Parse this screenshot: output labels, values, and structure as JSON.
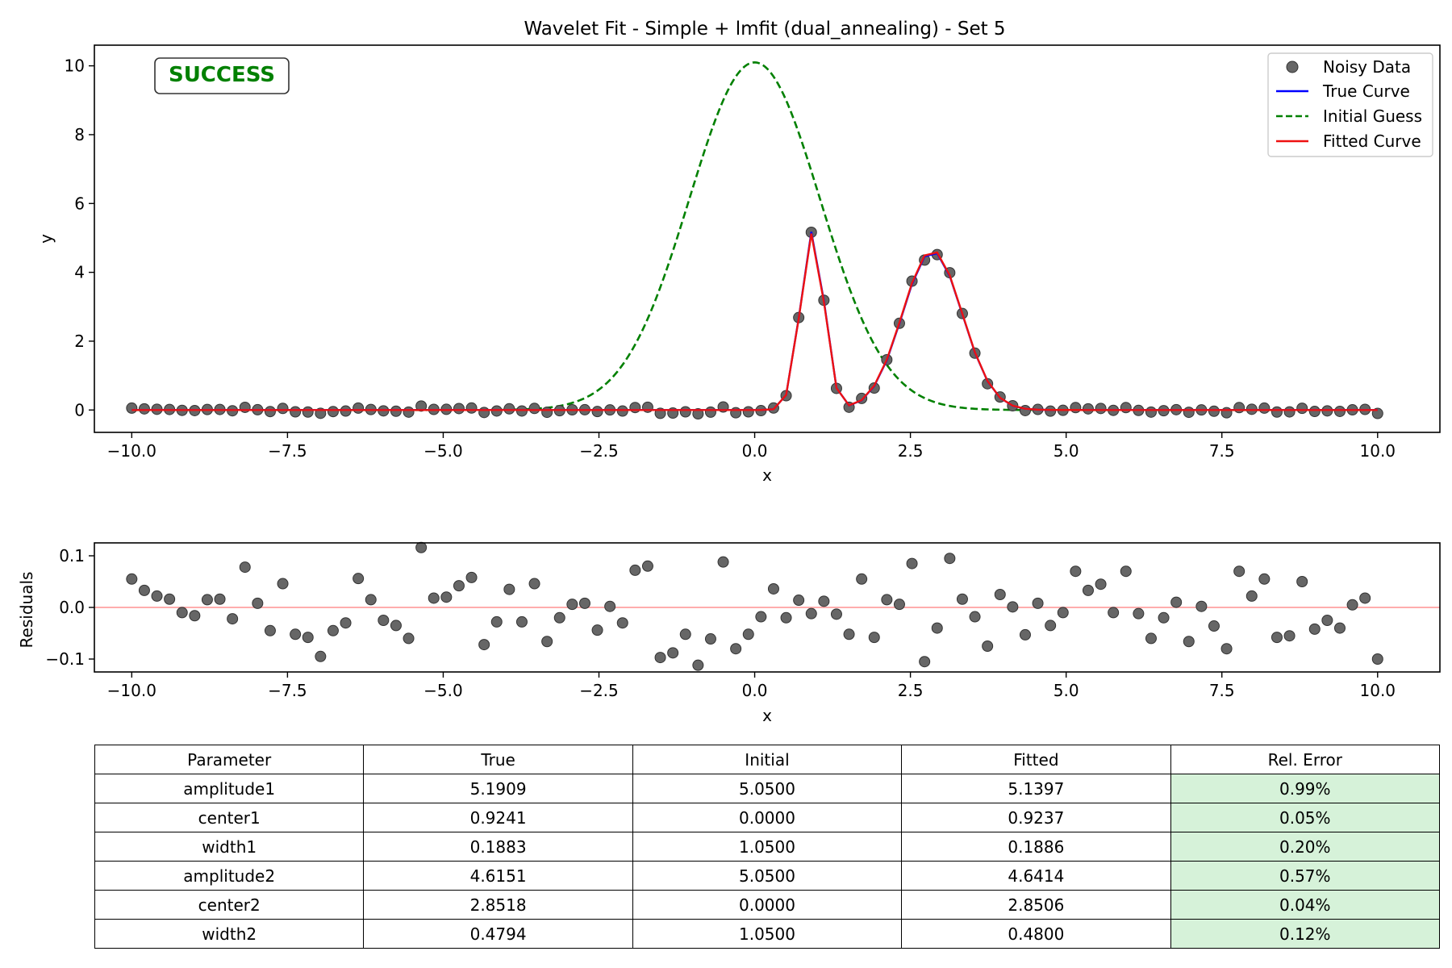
{
  "colors": {
    "noisy": "#666666",
    "true_curve": "#0000ff",
    "initial": "#008000",
    "fitted": "#ee1111",
    "zero_line": "#ff9999",
    "success": "#008000",
    "cell_ok": "#d6f2d9"
  },
  "chart_data": [
    {
      "type": "line",
      "title": "Wavelet Fit - Simple + lmfit (dual_annealing) - Set 5",
      "xlabel": "x",
      "ylabel": "y",
      "xlim": [
        -10.6,
        11.0
      ],
      "ylim": [
        -0.65,
        10.6
      ],
      "xticks": [
        -10,
        -7.5,
        -5,
        -2.5,
        0,
        2.5,
        5,
        7.5,
        10
      ],
      "xtick_labels": [
        "−10.0",
        "−7.5",
        "−5.0",
        "−2.5",
        "0.0",
        "2.5",
        "5.0",
        "7.5",
        "10.0"
      ],
      "yticks": [
        0,
        2,
        4,
        6,
        8,
        10
      ],
      "ytick_labels": [
        "0",
        "2",
        "4",
        "6",
        "8",
        "10"
      ],
      "grid": false,
      "legend_position": "top-right",
      "badge": "SUCCESS",
      "x_samples": {
        "start": -10,
        "stop": 10,
        "count": 100
      },
      "noise": [
        0.055,
        0.033,
        0.022,
        0.016,
        -0.01,
        -0.016,
        0.015,
        0.016,
        -0.022,
        0.078,
        0.008,
        -0.045,
        0.046,
        -0.052,
        -0.058,
        -0.095,
        -0.045,
        -0.03,
        0.056,
        0.015,
        -0.025,
        -0.035,
        -0.06,
        0.116,
        0.018,
        0.02,
        0.042,
        0.058,
        -0.072,
        -0.028,
        0.035,
        -0.028,
        0.046,
        -0.066,
        -0.02,
        0.006,
        0.008,
        -0.044,
        0.002,
        -0.03,
        0.072,
        0.08,
        -0.097,
        -0.088,
        -0.052,
        -0.112,
        -0.061,
        0.088,
        -0.08,
        -0.052,
        -0.018,
        0.036,
        -0.02,
        0.014,
        -0.012,
        0.012,
        -0.013,
        -0.052,
        0.055,
        -0.058,
        0.015,
        0.006,
        0.085,
        -0.105,
        -0.04,
        0.095,
        0.016,
        -0.018,
        -0.075,
        0.025,
        0.001,
        -0.053,
        0.008,
        -0.035,
        -0.01,
        0.07,
        0.033,
        0.045,
        -0.01,
        0.07,
        -0.012,
        -0.06,
        -0.02,
        0.01,
        -0.066,
        0.002,
        -0.036,
        -0.08,
        0.07,
        0.022,
        0.055,
        -0.058,
        -0.055,
        0.05,
        -0.042,
        -0.025,
        -0.04,
        0.005,
        0.018,
        -0.1
      ],
      "series": [
        {
          "name": "Noisy Data",
          "kind": "markers"
        },
        {
          "name": "True Curve",
          "kind": "line",
          "params": {
            "amplitude1": 5.1909,
            "center1": 0.9241,
            "width1": 0.1883,
            "amplitude2": 4.6151,
            "center2": 2.8518,
            "width2": 0.4794
          }
        },
        {
          "name": "Initial Guess",
          "kind": "dashed",
          "params": {
            "amplitude1": 5.05,
            "center1": 0.0,
            "width1": 1.05,
            "amplitude2": 5.05,
            "center2": 0.0,
            "width2": 1.05
          }
        },
        {
          "name": "Fitted Curve",
          "kind": "line",
          "params": {
            "amplitude1": 5.1397,
            "center1": 0.9237,
            "width1": 0.1886,
            "amplitude2": 4.6414,
            "center2": 2.8506,
            "width2": 0.48
          }
        }
      ]
    },
    {
      "type": "scatter",
      "title": "",
      "xlabel": "x",
      "ylabel": "Residuals",
      "xlim": [
        -10.6,
        11.0
      ],
      "ylim": [
        -0.125,
        0.125
      ],
      "xticks": [
        -10,
        -7.5,
        -5,
        -2.5,
        0,
        2.5,
        5,
        7.5,
        10
      ],
      "xtick_labels": [
        "−10.0",
        "−7.5",
        "−5.0",
        "−2.5",
        "0.0",
        "2.5",
        "5.0",
        "7.5",
        "10.0"
      ],
      "yticks": [
        -0.1,
        0.0,
        0.1
      ],
      "ytick_labels": [
        "−0.1",
        "0.0",
        "0.1"
      ],
      "reference_line": 0.0
    }
  ],
  "table": {
    "headers": [
      "Parameter",
      "True",
      "Initial",
      "Fitted",
      "Rel. Error"
    ],
    "rows": [
      [
        "amplitude1",
        "5.1909",
        "5.0500",
        "5.1397",
        "0.99%"
      ],
      [
        "center1",
        "0.9241",
        "0.0000",
        "0.9237",
        "0.05%"
      ],
      [
        "width1",
        "0.1883",
        "1.0500",
        "0.1886",
        "0.20%"
      ],
      [
        "amplitude2",
        "4.6151",
        "5.0500",
        "4.6414",
        "0.57%"
      ],
      [
        "center2",
        "2.8518",
        "0.0000",
        "2.8506",
        "0.04%"
      ],
      [
        "width2",
        "0.4794",
        "1.0500",
        "0.4800",
        "0.12%"
      ]
    ]
  }
}
